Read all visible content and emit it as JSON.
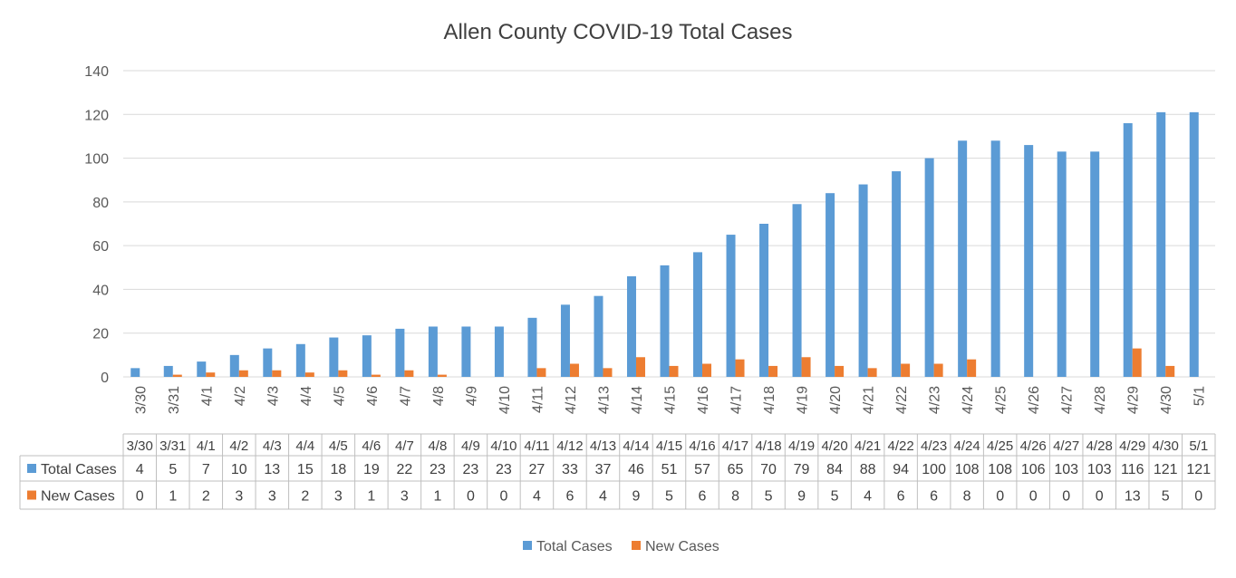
{
  "chart_data": {
    "type": "bar",
    "title": "Allen County COVID-19 Total Cases",
    "xlabel": "",
    "ylabel": "",
    "ylim": [
      0,
      140
    ],
    "yticks": [
      0,
      20,
      40,
      60,
      80,
      100,
      120,
      140
    ],
    "grid": true,
    "legend_position": "bottom",
    "categories": [
      "3/30",
      "3/31",
      "4/1",
      "4/2",
      "4/3",
      "4/4",
      "4/5",
      "4/6",
      "4/7",
      "4/8",
      "4/9",
      "4/10",
      "4/11",
      "4/12",
      "4/13",
      "4/14",
      "4/15",
      "4/16",
      "4/17",
      "4/18",
      "4/19",
      "4/20",
      "4/21",
      "4/22",
      "4/23",
      "4/24",
      "4/25",
      "4/26",
      "4/27",
      "4/28",
      "4/29",
      "4/30",
      "5/1"
    ],
    "series": [
      {
        "name": "Total Cases",
        "color": "#5B9BD5",
        "values": [
          4,
          5,
          7,
          10,
          13,
          15,
          18,
          19,
          22,
          23,
          23,
          23,
          27,
          33,
          37,
          46,
          51,
          57,
          65,
          70,
          79,
          84,
          88,
          94,
          100,
          108,
          108,
          106,
          103,
          103,
          116,
          121,
          121
        ]
      },
      {
        "name": "New Cases",
        "color": "#ED7D31",
        "values": [
          0,
          1,
          2,
          3,
          3,
          2,
          3,
          1,
          3,
          1,
          0,
          0,
          4,
          6,
          4,
          9,
          5,
          6,
          8,
          5,
          9,
          5,
          4,
          6,
          6,
          8,
          0,
          0,
          0,
          0,
          13,
          5,
          0
        ]
      }
    ],
    "data_table": true
  }
}
